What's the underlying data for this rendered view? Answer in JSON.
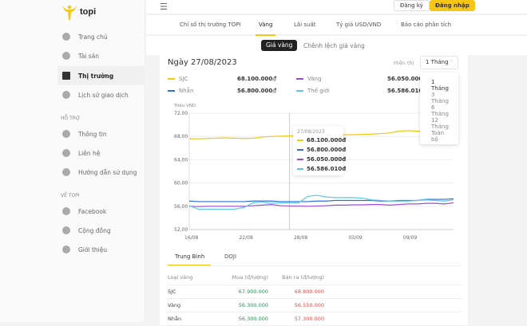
{
  "brand": "topi",
  "sidebar": {
    "items": [
      {
        "label": "Trang chủ",
        "icon": "home-icon"
      },
      {
        "label": "Tài sản",
        "icon": "diamond-icon"
      },
      {
        "label": "Thị trường",
        "icon": "chart-icon",
        "active": true
      },
      {
        "label": "Lịch sử giao dịch",
        "icon": "clock-icon"
      }
    ],
    "support_title": "HỖ TRỢ",
    "support": [
      {
        "label": "Thông tin",
        "icon": "question-icon"
      },
      {
        "label": "Liên hệ",
        "icon": "contact-icon"
      },
      {
        "label": "Hướng dẫn sử dụng",
        "icon": "info-icon"
      }
    ],
    "about_title": "VỀ TOPI",
    "about": [
      {
        "label": "Facebook",
        "icon": "facebook-icon"
      },
      {
        "label": "Cộng đồng",
        "icon": "community-icon"
      },
      {
        "label": "Giới thiệu",
        "icon": "topi-icon"
      }
    ]
  },
  "header": {
    "register": "Đăng ký",
    "login": "Đăng nhập"
  },
  "tabs": [
    "Chỉ số thị trường TOPI",
    "Vàng",
    "Lãi suất",
    "Tỷ giá USD/VND",
    "Báo cáo phân tích"
  ],
  "subtabs": [
    "Giá vàng",
    "Chênh lệch giá vàng"
  ],
  "card": {
    "date": "Ngày 27/08/2023",
    "display_label": "Hiển thị",
    "range": "1 Tháng",
    "range_options": [
      "1 Tháng",
      "3 Tháng",
      "6 Tháng",
      "12 Tháng",
      "Toàn bộ"
    ],
    "legend": [
      {
        "name": "SJC",
        "value": "68.100.000đ",
        "color": "#f5c518"
      },
      {
        "name": "Vàng",
        "value": "56.050.000đ",
        "color": "#9b4fd0"
      },
      {
        "name": "Nhẫn",
        "value": "56.800.000đ",
        "color": "#2f6fd6"
      },
      {
        "name": "Thế giới",
        "value": "56.586.010đ",
        "color": "#5bc8e8"
      }
    ],
    "tooltip": {
      "date": "27/08/2023",
      "values": [
        "68.100.000đ",
        "56.800.000đ",
        "56.050.000đ",
        "56.586.010đ"
      ]
    }
  },
  "chart_data": {
    "type": "line",
    "ylabel": "Triệu VND",
    "ylim": [
      52,
      72
    ],
    "yticks": [
      "72,00",
      "68,00",
      "64,00",
      "60,00",
      "56,00",
      "52,00"
    ],
    "xticks": [
      "16/08",
      "22/08",
      "28/08",
      "03/09",
      "09/09"
    ],
    "grid": true,
    "x_start": "16/08/2023",
    "x_end": "14/09/2023",
    "series": [
      {
        "name": "SJC",
        "color": "#f5c518",
        "values": [
          67.6,
          67.6,
          67.65,
          67.7,
          67.75,
          67.7,
          67.65,
          67.7,
          67.9,
          68.0,
          68.05,
          68.1,
          68.1,
          68.15,
          68.2,
          68.2,
          68.25,
          68.3,
          68.3,
          68.35,
          68.4,
          68.5,
          68.6,
          68.9,
          69.0,
          68.9,
          68.9,
          68.95,
          69.0,
          69.1
        ]
      },
      {
        "name": "Nhẫn",
        "color": "#2f6fd6",
        "values": [
          56.9,
          56.8,
          56.8,
          56.8,
          56.8,
          56.8,
          56.8,
          56.9,
          56.9,
          56.9,
          56.8,
          56.8,
          56.8,
          56.8,
          56.9,
          56.9,
          57.0,
          57.0,
          57.0,
          57.0,
          57.0,
          56.9,
          56.9,
          57.0,
          57.0,
          57.0,
          57.2,
          57.2,
          57.2,
          57.3
        ]
      },
      {
        "name": "Vàng",
        "color": "#9b4fd0",
        "values": [
          56.0,
          55.95,
          56.0,
          56.0,
          56.0,
          56.0,
          56.0,
          56.1,
          56.2,
          56.3,
          56.1,
          56.05,
          56.05,
          56.0,
          56.05,
          56.1,
          56.2,
          56.2,
          56.25,
          56.25,
          56.3,
          56.3,
          56.2,
          56.3,
          56.4,
          56.4,
          56.5,
          56.5,
          56.4,
          56.6
        ]
      },
      {
        "name": "Thế giới",
        "color": "#5bc8e8",
        "values": [
          56.1,
          55.5,
          55.5,
          55.5,
          55.5,
          55.5,
          55.8,
          56.6,
          56.7,
          56.5,
          56.6,
          56.6,
          56.6,
          57.7,
          57.9,
          57.6,
          57.5,
          57.5,
          57.5,
          57.4,
          57.1,
          57.0,
          56.9,
          56.9,
          56.9,
          57.0,
          57.1,
          57.0,
          56.9,
          57.1
        ]
      }
    ]
  },
  "table": {
    "tabs": [
      "Trung Bình",
      "DOJI"
    ],
    "headers": [
      "Loại vàng",
      "Mua (đ/lượng)",
      "Bán ra (đ/lượng)"
    ],
    "rows": [
      [
        "SJC",
        "67.900.000",
        "68.800.000"
      ],
      [
        "Vàng",
        "56.300.000",
        "56.550.000"
      ],
      [
        "Nhẫn",
        "56.300.000",
        "57.300.000"
      ]
    ],
    "buy_color": "#2e8b57",
    "sell_color": "#d9534f"
  }
}
